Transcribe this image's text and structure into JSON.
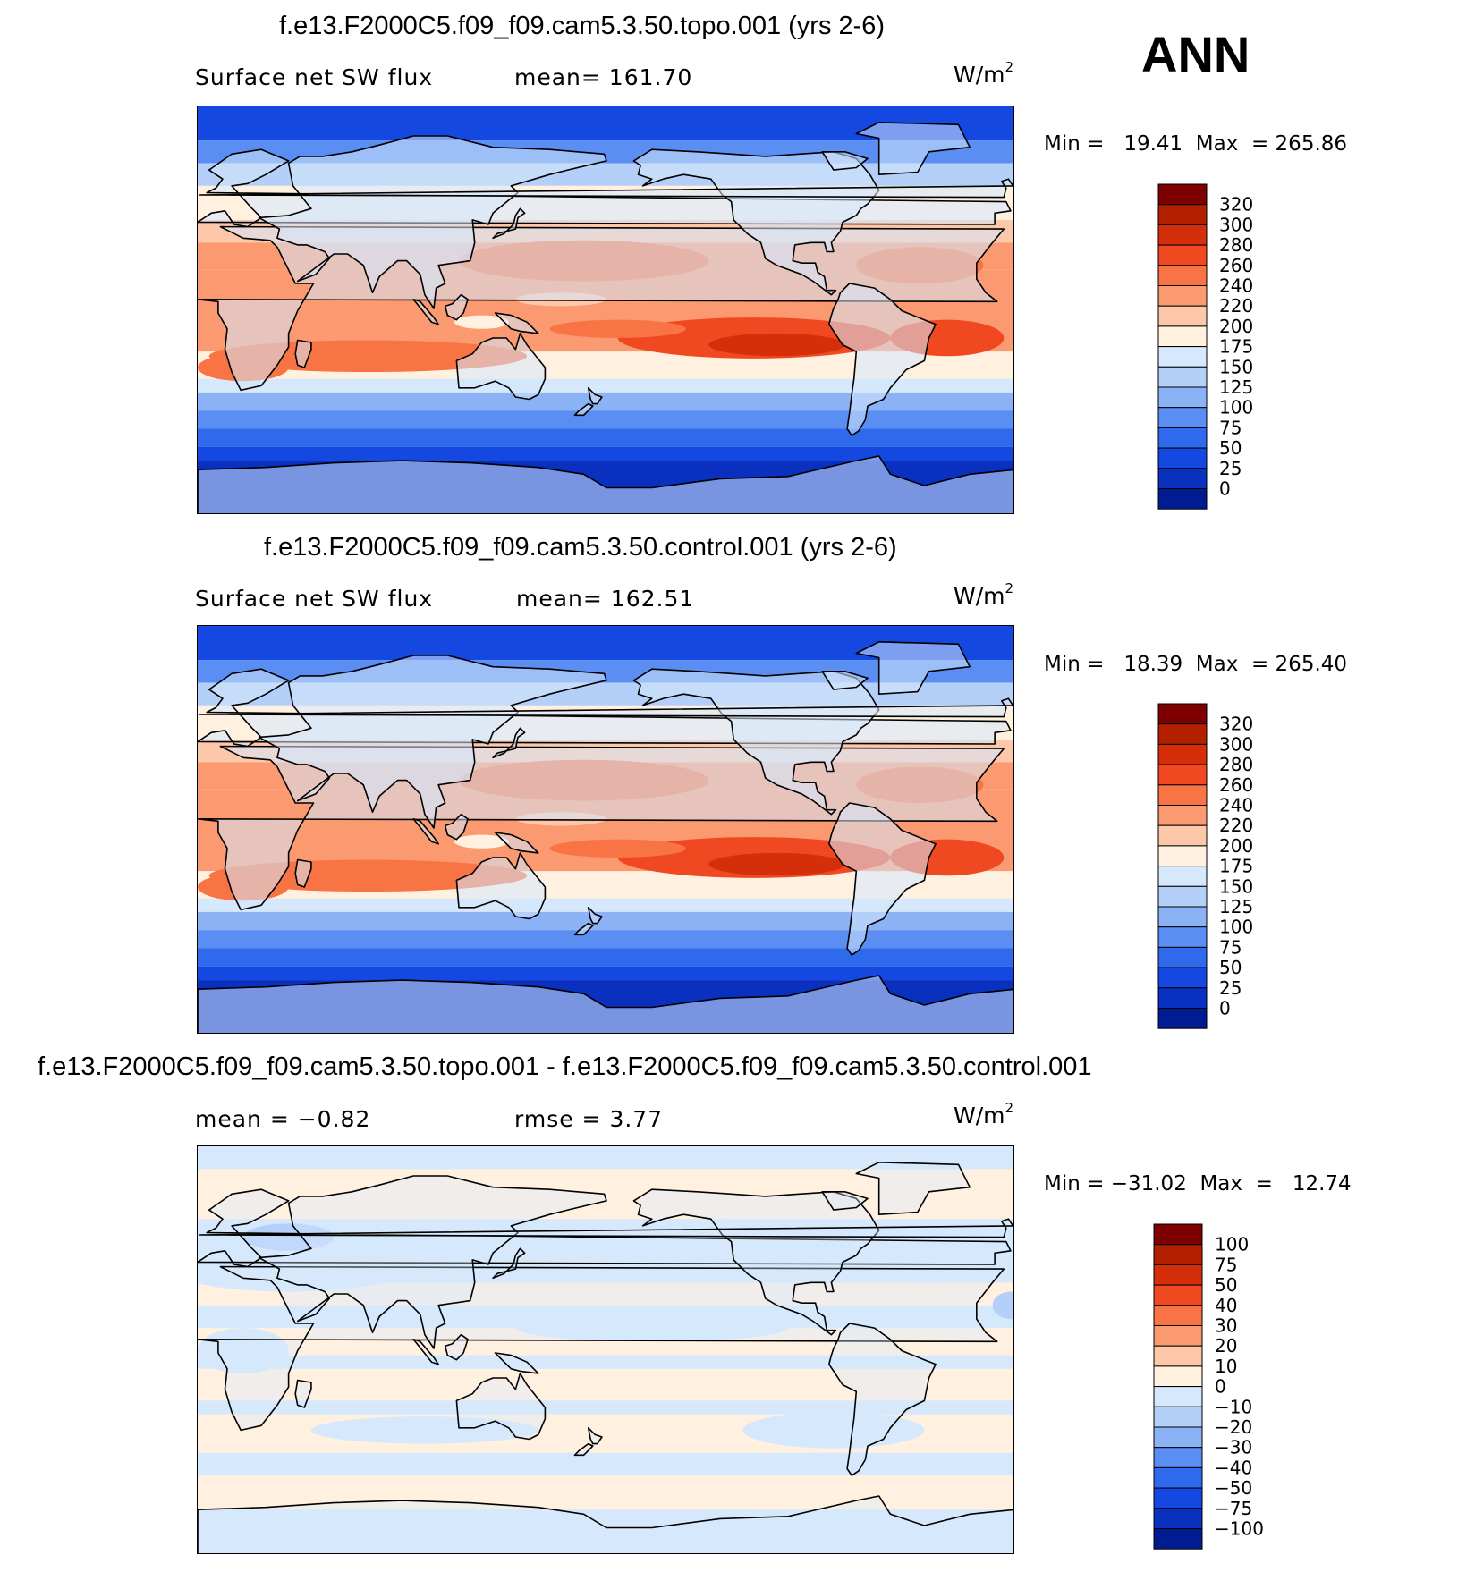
{
  "season": "ANN",
  "panels": [
    {
      "id": "topo",
      "title": "f.e13.F2000C5.f09_f09.cam5.3.50.topo.001 (yrs 2-6)",
      "left_label": "Surface net SW flux",
      "mid_label": "mean= 161.70",
      "units": "W/m",
      "units_exp": "2",
      "minmax": "Min =   19.41  Max  = 265.86",
      "colorbar": {
        "levels": [
          "320",
          "300",
          "280",
          "260",
          "240",
          "220",
          "200",
          "175",
          "150",
          "125",
          "100",
          "75",
          "50",
          "25",
          "0"
        ],
        "colors": [
          "#7f0000",
          "#b22000",
          "#d42e0a",
          "#f04820",
          "#f87444",
          "#fb9a70",
          "#fdc8aa",
          "#fff0e0",
          "#d6e8fb",
          "#b4d0f9",
          "#8cb2f6",
          "#5a8ef2",
          "#2f6aed",
          "#1448e0",
          "#0a30c0",
          "#001c90"
        ]
      },
      "chart_data": {
        "type": "heatmap",
        "title": "f.e13.F2000C5.f09_f09.cam5.3.50.topo.001 (yrs 2-6)",
        "variable": "Surface net SW flux",
        "units": "W/m2",
        "mean": 161.7,
        "min": 19.41,
        "max": 265.86,
        "contour_levels": [
          0,
          25,
          50,
          75,
          100,
          125,
          150,
          175,
          200,
          220,
          240,
          260,
          280,
          300,
          320
        ]
      }
    },
    {
      "id": "control",
      "title": "f.e13.F2000C5.f09_f09.cam5.3.50.control.001 (yrs 2-6)",
      "left_label": "Surface net SW flux",
      "mid_label": "mean= 162.51",
      "units": "W/m",
      "units_exp": "2",
      "minmax": "Min =   18.39  Max  = 265.40",
      "colorbar": {
        "levels": [
          "320",
          "300",
          "280",
          "260",
          "240",
          "220",
          "200",
          "175",
          "150",
          "125",
          "100",
          "75",
          "50",
          "25",
          "0"
        ],
        "colors": [
          "#7f0000",
          "#b22000",
          "#d42e0a",
          "#f04820",
          "#f87444",
          "#fb9a70",
          "#fdc8aa",
          "#fff0e0",
          "#d6e8fb",
          "#b4d0f9",
          "#8cb2f6",
          "#5a8ef2",
          "#2f6aed",
          "#1448e0",
          "#0a30c0",
          "#001c90"
        ]
      },
      "chart_data": {
        "type": "heatmap",
        "title": "f.e13.F2000C5.f09_f09.cam5.3.50.control.001 (yrs 2-6)",
        "variable": "Surface net SW flux",
        "units": "W/m2",
        "mean": 162.51,
        "min": 18.39,
        "max": 265.4,
        "contour_levels": [
          0,
          25,
          50,
          75,
          100,
          125,
          150,
          175,
          200,
          220,
          240,
          260,
          280,
          300,
          320
        ]
      }
    },
    {
      "id": "diff",
      "title": "f.e13.F2000C5.f09_f09.cam5.3.50.topo.001 - f.e13.F2000C5.f09_f09.cam5.3.50.control.001",
      "left_label": "mean =   −0.82",
      "mid_label": "rmse =    3.77",
      "units": "W/m",
      "units_exp": "2",
      "minmax": "Min = −31.02  Max  =   12.74",
      "colorbar": {
        "levels": [
          "100",
          "75",
          "50",
          "40",
          "30",
          "20",
          "10",
          "0",
          "−10",
          "−20",
          "−30",
          "−40",
          "−50",
          "−75",
          "−100"
        ],
        "colors": [
          "#7f0000",
          "#b22000",
          "#d42e0a",
          "#f04820",
          "#f87444",
          "#fb9a70",
          "#fdc8aa",
          "#fff0e0",
          "#d6e8fb",
          "#b4d0f9",
          "#8cb2f6",
          "#5a8ef2",
          "#2f6aed",
          "#1448e0",
          "#0a30c0",
          "#001c90"
        ]
      },
      "chart_data": {
        "type": "heatmap",
        "title": "f.e13.F2000C5.f09_f09.cam5.3.50.topo.001 - f.e13.F2000C5.f09_f09.cam5.3.50.control.001",
        "units": "W/m2",
        "mean": -0.82,
        "rmse": 3.77,
        "min": -31.02,
        "max": 12.74,
        "contour_levels": [
          -100,
          -75,
          -50,
          -40,
          -30,
          -20,
          -10,
          0,
          10,
          20,
          30,
          40,
          50,
          75,
          100
        ]
      }
    }
  ]
}
